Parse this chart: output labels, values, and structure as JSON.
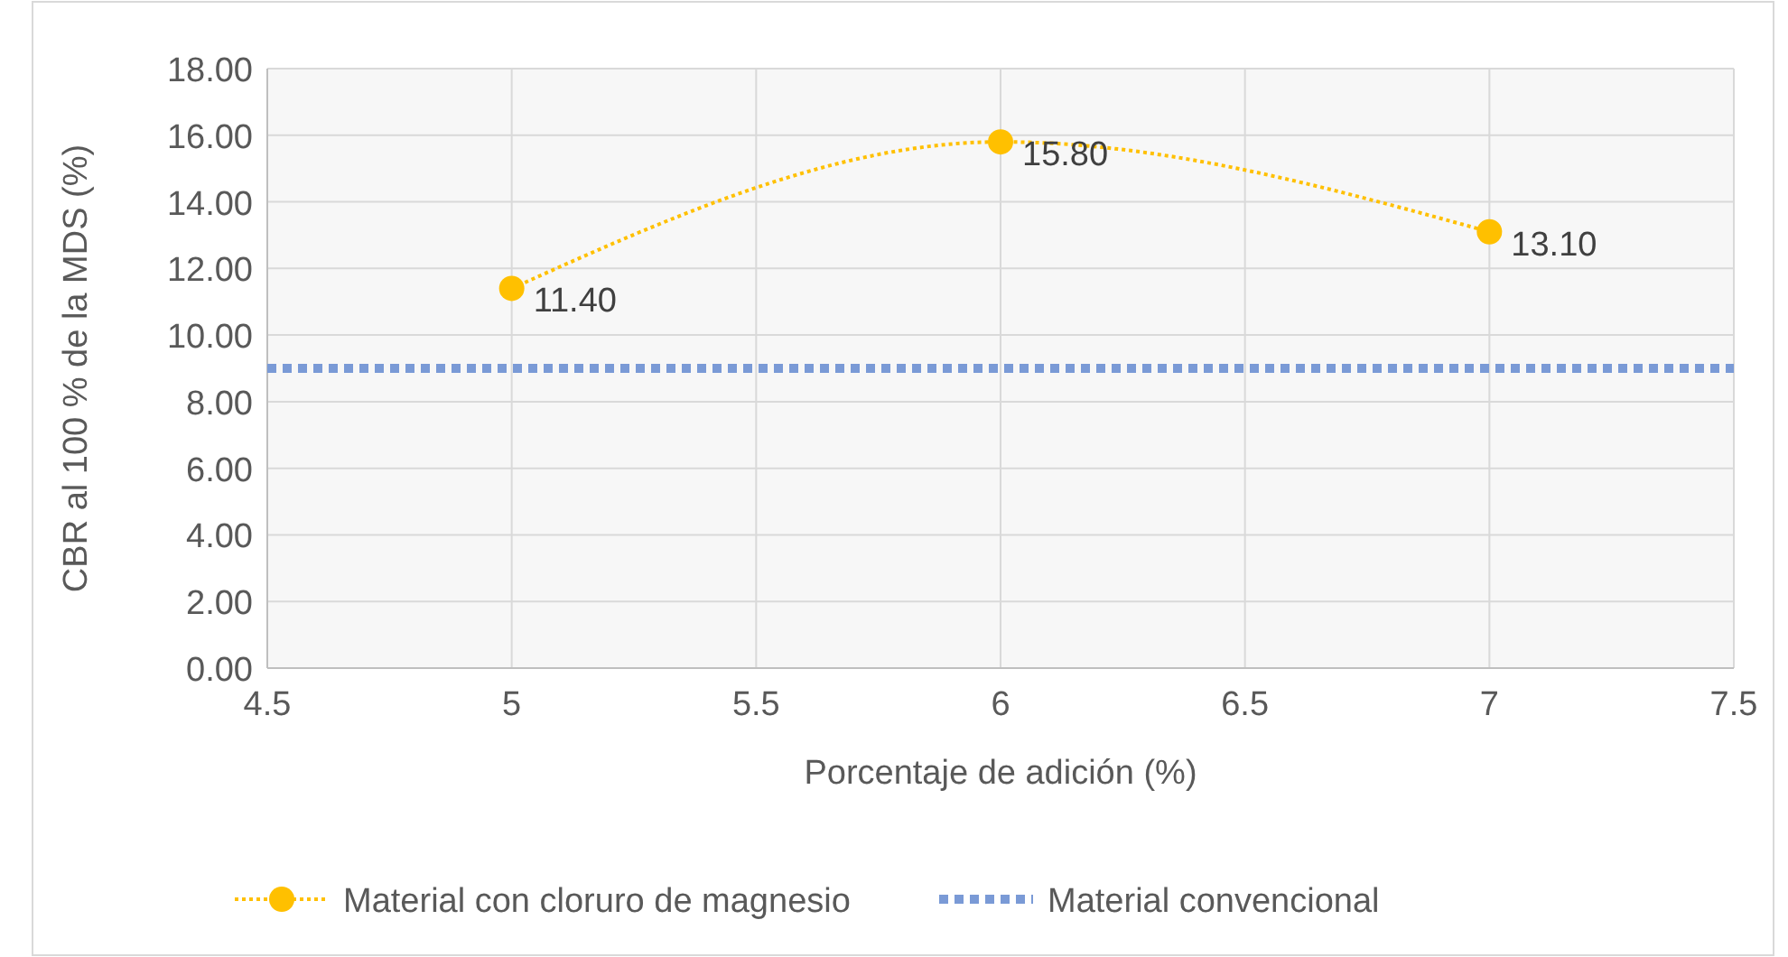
{
  "chart_data": {
    "type": "line",
    "xlabel": "Porcentaje de adición (%)",
    "ylabel": "CBR al 100 % de la MDS (%)",
    "xlim": [
      4.5,
      7.5
    ],
    "xticks": [
      4.5,
      5,
      5.5,
      6,
      6.5,
      7,
      7.5
    ],
    "ylim": [
      0,
      18
    ],
    "yticks": [
      {
        "value": 0,
        "label": "0.00"
      },
      {
        "value": 2,
        "label": "2.00"
      },
      {
        "value": 4,
        "label": "4.00"
      },
      {
        "value": 6,
        "label": "6.00"
      },
      {
        "value": 8,
        "label": "8.00"
      },
      {
        "value": 10,
        "label": "10.00"
      },
      {
        "value": 12,
        "label": "12.00"
      },
      {
        "value": 14,
        "label": "14.00"
      },
      {
        "value": 16,
        "label": "16.00"
      },
      {
        "value": 18,
        "label": "18.00"
      }
    ],
    "grid": true,
    "legend": "bottom",
    "series": [
      {
        "name": "Material con cloruro de magnesio",
        "color": "#ffc000",
        "x": [
          5,
          6,
          7
        ],
        "values": [
          11.4,
          15.8,
          13.1
        ],
        "value_labels": [
          "11.40",
          "15.80",
          "13.10"
        ],
        "marker": "circle",
        "line_style": "dotted"
      },
      {
        "name": "Material convencional",
        "color": "#7a9ad6",
        "x": [
          4.5,
          7.5
        ],
        "values": [
          9,
          9
        ],
        "marker": "none",
        "line_style": "dashed"
      }
    ]
  }
}
